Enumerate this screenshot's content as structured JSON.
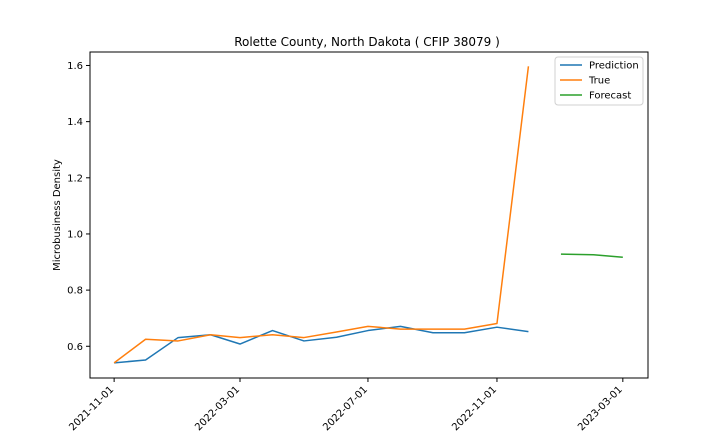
{
  "chart_data": {
    "type": "line",
    "title": "Rolette County, North Dakota ( CFIP 38079 )",
    "xlabel": "",
    "ylabel": "Microbusiness Density",
    "x_axis_type": "date",
    "xlim": [
      "2021-10-09",
      "2023-03-25"
    ],
    "ylim": [
      0.487,
      1.648
    ],
    "x_ticks": [
      "2021-11-01",
      "2022-03-01",
      "2022-07-01",
      "2022-11-01",
      "2023-03-01"
    ],
    "y_ticks": [
      0.6,
      0.8,
      1.0,
      1.2,
      1.4,
      1.6
    ],
    "y_tick_labels": [
      "0.6",
      "0.8",
      "1.0",
      "1.2",
      "1.4",
      "1.6"
    ],
    "grid": false,
    "legend_position": "top-right",
    "series": [
      {
        "name": "Prediction",
        "color": "#1f77b4",
        "x": [
          "2021-11-01",
          "2021-12-01",
          "2022-01-01",
          "2022-02-01",
          "2022-03-01",
          "2022-04-01",
          "2022-05-01",
          "2022-06-01",
          "2022-07-01",
          "2022-08-01",
          "2022-09-01",
          "2022-10-01",
          "2022-11-01",
          "2022-12-01"
        ],
        "values": [
          0.541,
          0.551,
          0.631,
          0.641,
          0.608,
          0.656,
          0.619,
          0.632,
          0.656,
          0.671,
          0.648,
          0.648,
          0.668,
          0.652
        ]
      },
      {
        "name": "True",
        "color": "#ff7f0e",
        "x": [
          "2021-11-01",
          "2021-12-01",
          "2022-01-01",
          "2022-02-01",
          "2022-03-01",
          "2022-04-01",
          "2022-05-01",
          "2022-06-01",
          "2022-07-01",
          "2022-08-01",
          "2022-09-01",
          "2022-10-01",
          "2022-11-01",
          "2022-12-01"
        ],
        "values": [
          0.541,
          0.625,
          0.619,
          0.641,
          0.631,
          0.641,
          0.631,
          0.651,
          0.671,
          0.661,
          0.661,
          0.661,
          0.681,
          1.597
        ]
      },
      {
        "name": "Forecast",
        "color": "#2ca02c",
        "x": [
          "2023-01-01",
          "2023-02-01",
          "2023-03-01"
        ],
        "values": [
          0.928,
          0.926,
          0.917
        ]
      }
    ]
  }
}
